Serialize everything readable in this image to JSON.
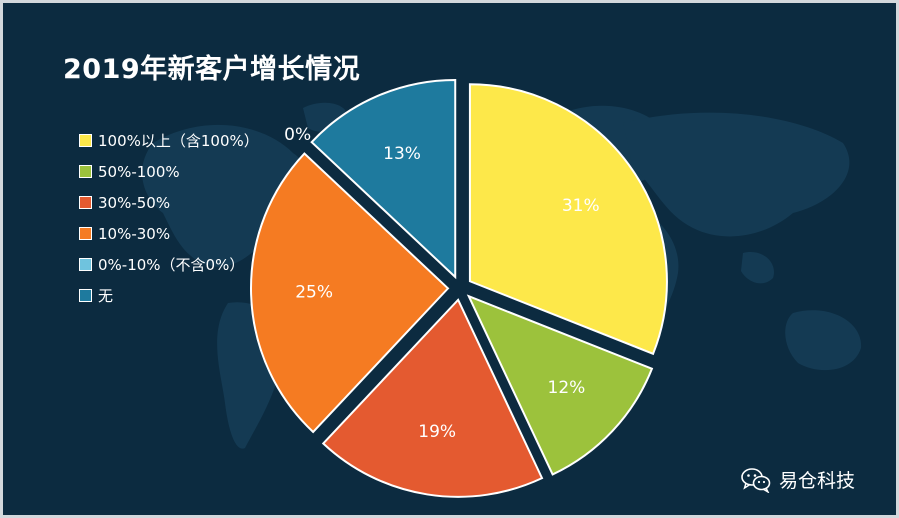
{
  "chart_data": {
    "type": "pie",
    "title": "2019年新客户增长情况",
    "slices": [
      {
        "label": "100%以上（含100%）",
        "value": 31,
        "value_label": "31%",
        "color": "#fde84a"
      },
      {
        "label": "50%-100%",
        "value": 12,
        "value_label": "12%",
        "color": "#9cc23c"
      },
      {
        "label": "30%-50%",
        "value": 19,
        "value_label": "19%",
        "color": "#e45a30"
      },
      {
        "label": "10%-30%",
        "value": 25,
        "value_label": "25%",
        "color": "#f57b22"
      },
      {
        "label": "0%-10%（不含0%）",
        "value": 0,
        "value_label": "0%",
        "color": "#6fc3de"
      },
      {
        "label": "无",
        "value": 13,
        "value_label": "13%",
        "color": "#1e7a9e"
      }
    ],
    "legend": {
      "position": "top-left"
    },
    "slice_border_color": "#ffffff",
    "background": "#0c2b40"
  },
  "watermark": {
    "label": "易仓科技",
    "icon": "wechat-icon"
  }
}
